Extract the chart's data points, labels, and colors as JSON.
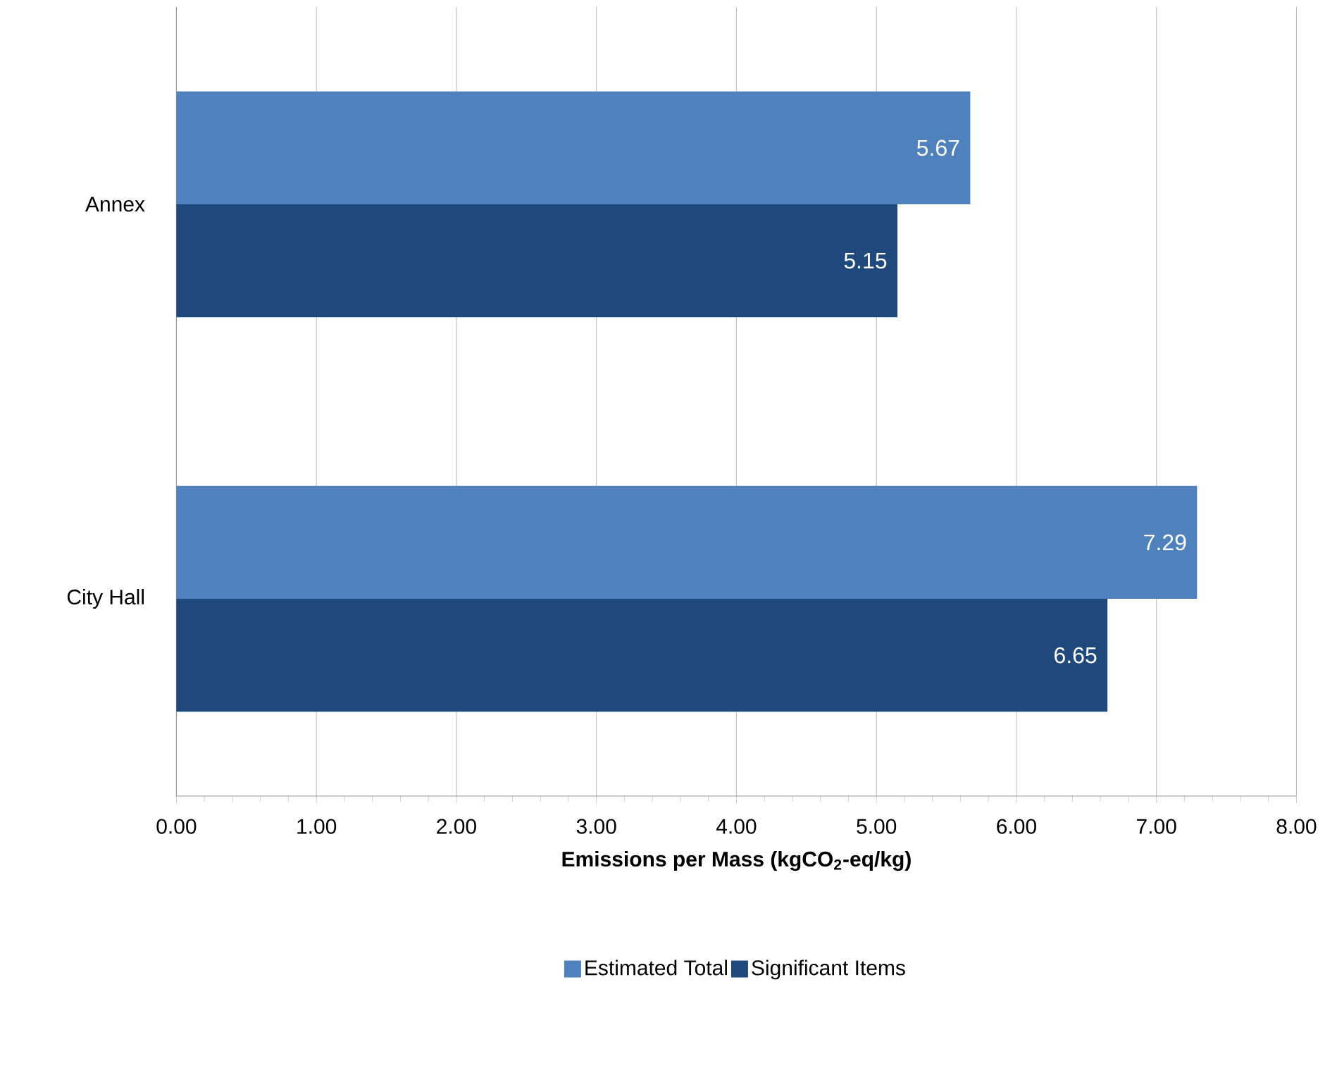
{
  "chart_data": {
    "type": "bar",
    "orientation": "horizontal",
    "xlabel": "Emissions per Mass (kgCO$_{2}$-eq/kg)",
    "categories": [
      "Annex",
      "City Hall"
    ],
    "series": [
      {
        "name": "Estimated Total",
        "color": "#4f81bd",
        "values": [
          5.67,
          7.29
        ]
      },
      {
        "name": "Significant Items",
        "color": "#1f497d",
        "values": [
          5.15,
          6.65
        ]
      }
    ],
    "xlim": [
      0,
      8
    ],
    "xticks": [
      {
        "value": 0,
        "label": "0.00"
      },
      {
        "value": 1,
        "label": "1.00"
      },
      {
        "value": 2,
        "label": "2.00"
      },
      {
        "value": 3,
        "label": "3.00"
      },
      {
        "value": 4,
        "label": "4.00"
      },
      {
        "value": 5,
        "label": "5.00"
      },
      {
        "value": 6,
        "label": "6.00"
      },
      {
        "value": 7,
        "label": "7.00"
      },
      {
        "value": 8,
        "label": "8.00"
      }
    ],
    "grid": "x",
    "legend": "bottom",
    "data_labels": true
  }
}
